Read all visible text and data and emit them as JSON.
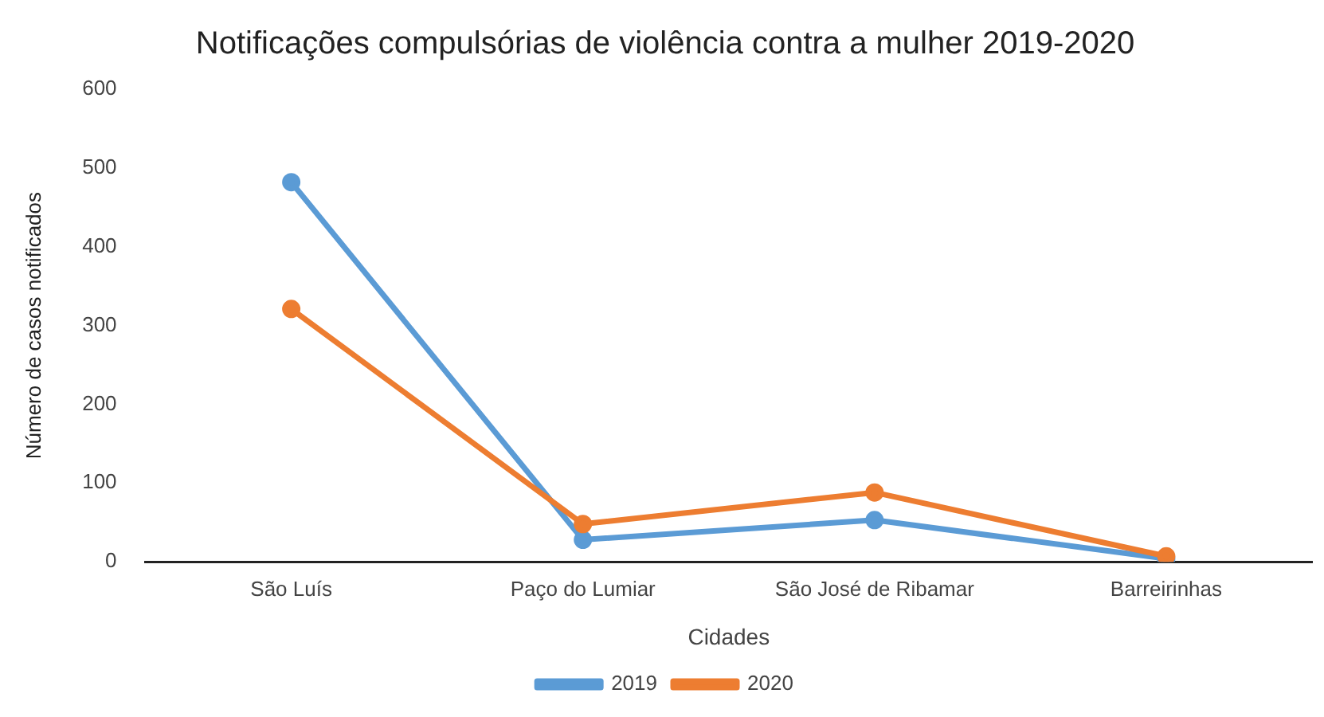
{
  "chart_data": {
    "type": "line",
    "title": "Notificações compulsórias de violência contra a mulher 2019-2020",
    "xlabel": "Cidades",
    "ylabel": "Número de casos notificados",
    "categories": [
      "São Luís",
      "Paço do Lumiar",
      "São José de Ribamar",
      "Barreirinhas"
    ],
    "series": [
      {
        "name": "2019",
        "color": "#5b9bd5",
        "values": [
          482,
          28,
          53,
          4
        ]
      },
      {
        "name": "2020",
        "color": "#ed7d31",
        "values": [
          321,
          48,
          88,
          7
        ]
      }
    ],
    "ylim": [
      0,
      600
    ],
    "yticks": [
      0,
      100,
      200,
      300,
      400,
      500,
      600
    ],
    "grid": false,
    "legend": "bottom",
    "marker": "circle",
    "line_style": "solid"
  }
}
